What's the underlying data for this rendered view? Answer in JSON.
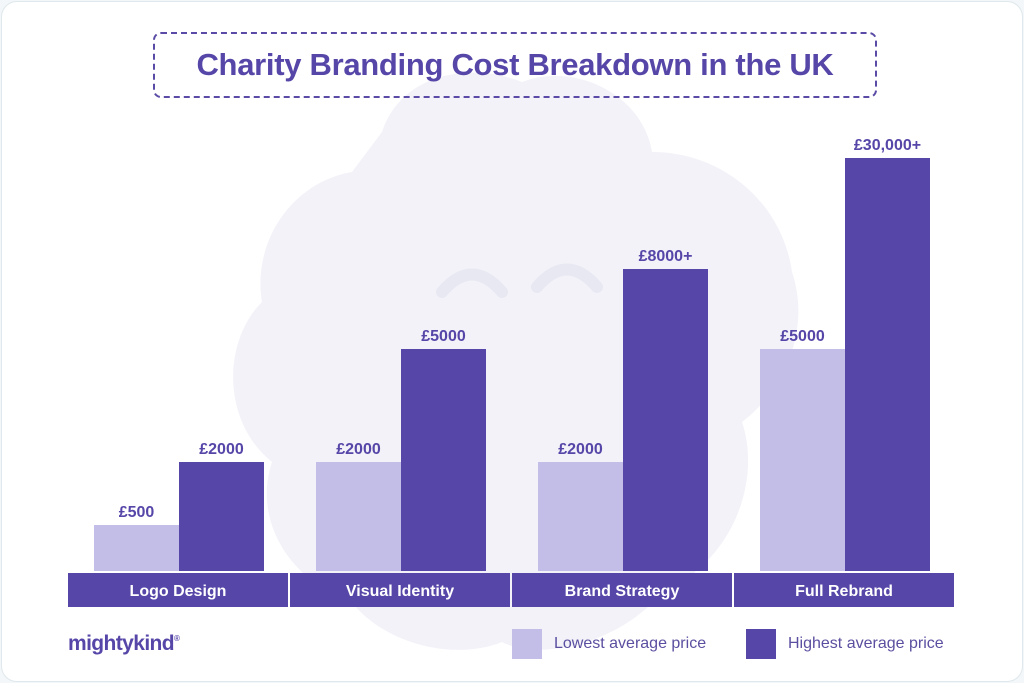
{
  "chart_data": {
    "type": "bar",
    "title": "Charity Branding Cost Breakdown in the UK",
    "categories": [
      "Logo Design",
      "Visual Identity",
      "Brand Strategy",
      "Full Rebrand"
    ],
    "series": [
      {
        "name": "Lowest average price",
        "values": [
          500,
          2000,
          2000,
          5000
        ],
        "labels": [
          "£500",
          "£2000",
          "£2000",
          "£5000"
        ],
        "color": "#c3bee8"
      },
      {
        "name": "Highest average price",
        "values": [
          2000,
          5000,
          8000,
          30000
        ],
        "labels": [
          "£2000",
          "£5000",
          "£8000+",
          "£30,000+"
        ],
        "color": "#5546a8"
      }
    ],
    "legend_position": "bottom-right",
    "grid": false
  },
  "brand": {
    "logo_text": "mightykind",
    "logo_mark": "®"
  },
  "colors": {
    "accent": "#5546a8",
    "light": "#c3bee8",
    "category_band": "#5546a8",
    "watermark": "#f1f2f8"
  }
}
